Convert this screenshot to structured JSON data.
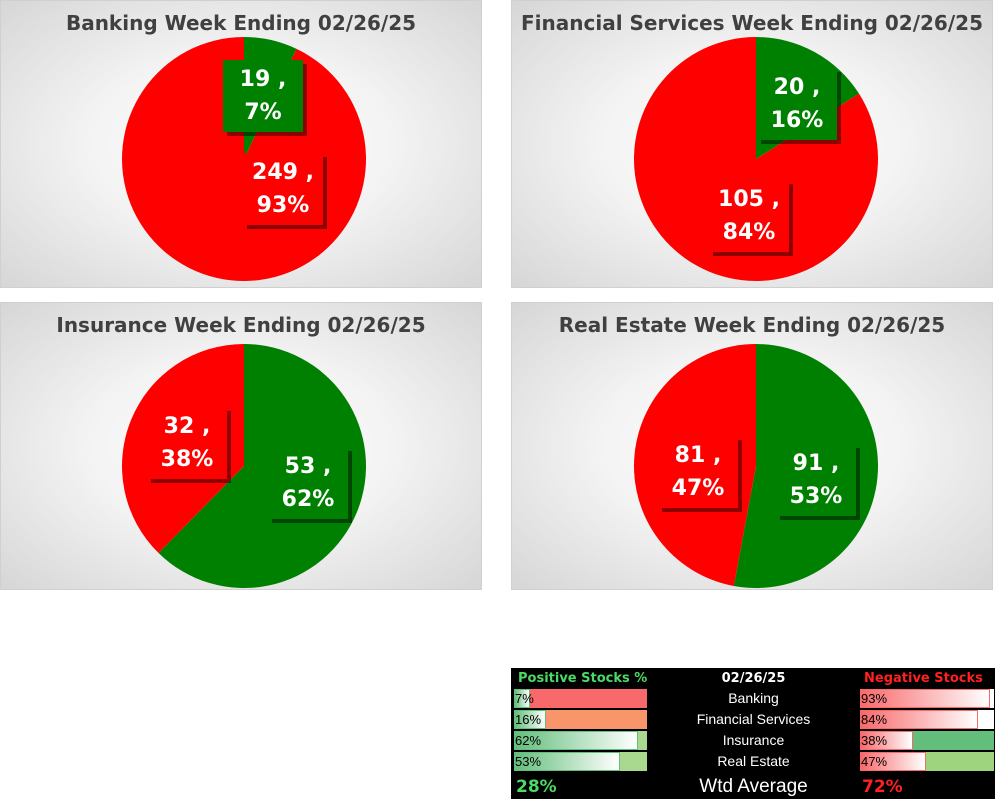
{
  "chart_data": [
    {
      "type": "pie",
      "title": "Banking Week Ending 02/26/25",
      "slices": [
        {
          "label": "Positive",
          "value": 19,
          "percent": "7%",
          "color": "#008000"
        },
        {
          "label": "Negative",
          "value": 249,
          "percent": "93%",
          "color": "#ff0000"
        }
      ],
      "data_labels": [
        [
          "19 ,",
          "7%"
        ],
        [
          "249 ,",
          "93%"
        ]
      ]
    },
    {
      "type": "pie",
      "title": "Financial Services Week Ending 02/26/25",
      "slices": [
        {
          "label": "Positive",
          "value": 20,
          "percent": "16%",
          "color": "#008000"
        },
        {
          "label": "Negative",
          "value": 105,
          "percent": "84%",
          "color": "#ff0000"
        }
      ],
      "data_labels": [
        [
          "20 ,",
          "16%"
        ],
        [
          "105 ,",
          "84%"
        ]
      ]
    },
    {
      "type": "pie",
      "title": "Insurance Week Ending 02/26/25",
      "slices": [
        {
          "label": "Positive",
          "value": 53,
          "percent": "62%",
          "color": "#008000"
        },
        {
          "label": "Negative",
          "value": 32,
          "percent": "38%",
          "color": "#ff0000"
        }
      ],
      "data_labels": [
        [
          "53 ,",
          "62%"
        ],
        [
          "32 ,",
          "38%"
        ]
      ]
    },
    {
      "type": "pie",
      "title": "Real Estate Week Ending 02/26/25",
      "slices": [
        {
          "label": "Positive",
          "value": 91,
          "percent": "53%",
          "color": "#008000"
        },
        {
          "label": "Negative",
          "value": 81,
          "percent": "47%",
          "color": "#ff0000"
        }
      ],
      "data_labels": [
        [
          "91 ,",
          "53%"
        ],
        [
          "81 ,",
          "47%"
        ]
      ]
    }
  ],
  "summary": {
    "positive_header": "Positive Stocks %",
    "date_header": "02/26/25",
    "negative_header": "Negative Stocks %",
    "rows": [
      {
        "category": "Banking",
        "positive": "7%",
        "positive_value": 0.07,
        "negative": "93%",
        "negative_value": 0.93
      },
      {
        "category": "Financial Services",
        "positive": "16%",
        "positive_value": 0.16,
        "negative": "84%",
        "negative_value": 0.84
      },
      {
        "category": "Insurance",
        "positive": "62%",
        "positive_value": 0.62,
        "negative": "38%",
        "negative_value": 0.38
      },
      {
        "category": "Real Estate",
        "positive": "53%",
        "positive_value": 0.53,
        "negative": "47%",
        "negative_value": 0.47
      }
    ],
    "avg_positive": "28%",
    "avg_label": "Wtd Average",
    "avg_negative": "72%",
    "colors": {
      "positive_text": "#4cd964",
      "negative_text": "#ff2020",
      "positive_bg": "#63be7b",
      "negative_bg": "#f8696b"
    }
  }
}
